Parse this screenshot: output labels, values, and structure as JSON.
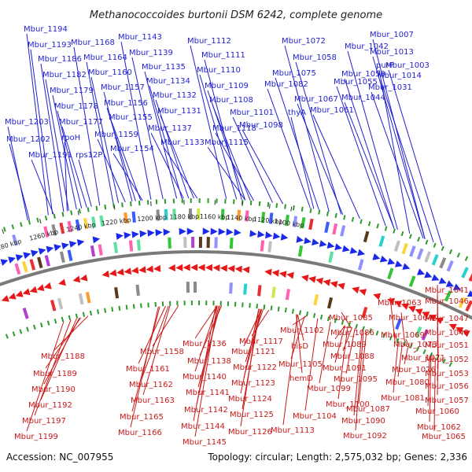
{
  "title": "Methanococcoides burtonii DSM 6242, complete genome",
  "accession": "Accession: NC_007955",
  "summary": "Topology: circular; Length: 2,575,032 bp; Genes: 2,336",
  "colors": {
    "top_label": "#1f1fd0",
    "bottom_label": "#c81818",
    "backbone": "#7a7a7a",
    "tick_mark": "#2a9a2a"
  },
  "kbp_ticks": [
    "1100 kbp",
    "1120 kbp",
    "1140 kbp",
    "1160 kbp",
    "1180 kbp",
    "1200 kbp",
    "1220 kbp",
    "1240 kbp",
    "1260 kbp",
    "1280 kbp"
  ],
  "top_labels": [
    "Mbur_1194",
    "Mbur_1193",
    "Mbur_1186",
    "Mbur_1182",
    "Mbur_1179",
    "Mbur_1178",
    "Mbur_1177",
    "Mbur_1203",
    "rpoH",
    "Mbur_1202",
    "Mbur_1191",
    "rps12P",
    "Mbur_1168",
    "Mbur_1164",
    "Mbur_1160",
    "Mbur_1157",
    "Mbur_1156",
    "Mbur_1155",
    "Mbur_1159",
    "Mbur_1154",
    "Mbur_1143",
    "Mbur_1139",
    "Mbur_1135",
    "Mbur_1134",
    "Mbur_1132",
    "Mbur_1131",
    "Mbur_1137",
    "Mbur_1133",
    "Mbur_1112",
    "Mbur_1111",
    "Mbur_1110",
    "Mbur_1109",
    "Mbur_1108",
    "Mbur_1101",
    "Mbur_1098",
    "Mbur_1118",
    "Mbur_1115",
    "Mbur_1072",
    "Mbur_1058",
    "Mbur_1075",
    "Mbur_1082",
    "Mbur_1067",
    "thyA",
    "Mbur_1061",
    "Mbur_1042",
    "Mbur_1050",
    "Mbur_1055",
    "Mbur_1044",
    "Mbur_1007",
    "Mbur_1013",
    "purP",
    "Mbur_1003",
    "Mbur_1014",
    "Mbur_1031"
  ],
  "bottom_labels": [
    "Mbur_1188",
    "Mbur_1189",
    "Mbur_1190",
    "Mbur_1192",
    "Mbur_1197",
    "Mbur_1199",
    "Mbur_1158",
    "Mbur_1161",
    "Mbur_1162",
    "Mbur_1163",
    "Mbur_1165",
    "Mbur_1166",
    "Mbur_1136",
    "Mbur_1138",
    "Mbur_1140",
    "Mbur_1141",
    "Mbur_1142",
    "Mbur_1144",
    "Mbur_1145",
    "Mbur_1117",
    "Mbur_1121",
    "Mbur_1122",
    "Mbur_1123",
    "Mbur_1124",
    "Mbur_1125",
    "Mbur_1126",
    "Mbur_1102",
    "hisD",
    "Mbur_1105",
    "hemD",
    "Mbur_1104",
    "Mbur_1113",
    "Mbur_1085",
    "Mbur_1086",
    "Mbur_1089",
    "Mbur_1088",
    "Mbur_1091",
    "Mbur_1095",
    "Mbur_1099",
    "Mbur_1100",
    "Mbur_1087",
    "Mbur_1090",
    "Mbur_1092",
    "Mbur_1063",
    "Mbur_1064",
    "Mbur_1069",
    "Mbur_1073",
    "Mbur_1071",
    "Mbur_1076",
    "Mbur_1080",
    "Mbur_1081",
    "Mbur_1041",
    "Mbur_1046",
    "Mbur_1047",
    "Mbur_1048",
    "Mbur_1051",
    "Mbur_1052",
    "Mbur_1053",
    "Mbur_1056",
    "Mbur_1057",
    "Mbur_1060",
    "Mbur_1062",
    "Mbur_1065"
  ]
}
